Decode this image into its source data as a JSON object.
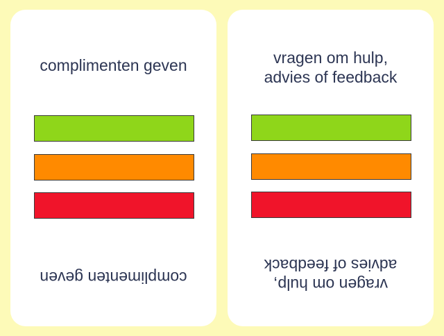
{
  "colors": {
    "background": "#fdfab8",
    "card": "#ffffff",
    "text": "#2c3553",
    "bar_green": "#8fd61a",
    "bar_orange": "#ff8a00",
    "bar_red": "#f0142a"
  },
  "cards": [
    {
      "lines": [
        "complimenten geven"
      ],
      "bars": [
        "green",
        "orange",
        "red"
      ]
    },
    {
      "lines": [
        "vragen om hulp,",
        "advies of feedback"
      ],
      "bars": [
        "green",
        "orange",
        "red"
      ]
    }
  ]
}
